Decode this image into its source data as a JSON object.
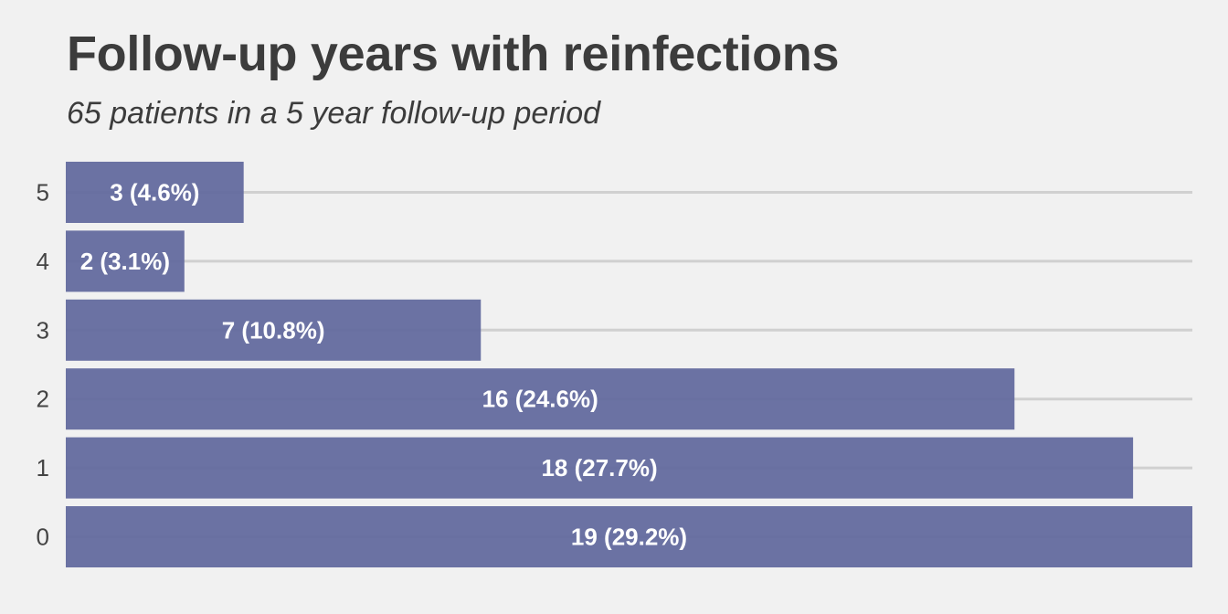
{
  "chart_data": {
    "type": "bar",
    "orientation": "horizontal",
    "title": "Follow-up years with reinfections",
    "subtitle": "65 patients in a 5 year follow-up period",
    "xlabel": "",
    "ylabel": "",
    "categories": [
      "5",
      "4",
      "3",
      "2",
      "1",
      "0"
    ],
    "values": [
      3,
      2,
      7,
      16,
      18,
      19
    ],
    "data_labels": [
      "3 (4.6%)",
      "2 (3.1%)",
      "7 (10.8%)",
      "16 (24.6%)",
      "18 (27.7%)",
      "19 (29.2%)"
    ],
    "xlim": [
      0,
      19
    ],
    "grid": "horizontal",
    "legend": "none",
    "bar_color": "#5f679c"
  }
}
